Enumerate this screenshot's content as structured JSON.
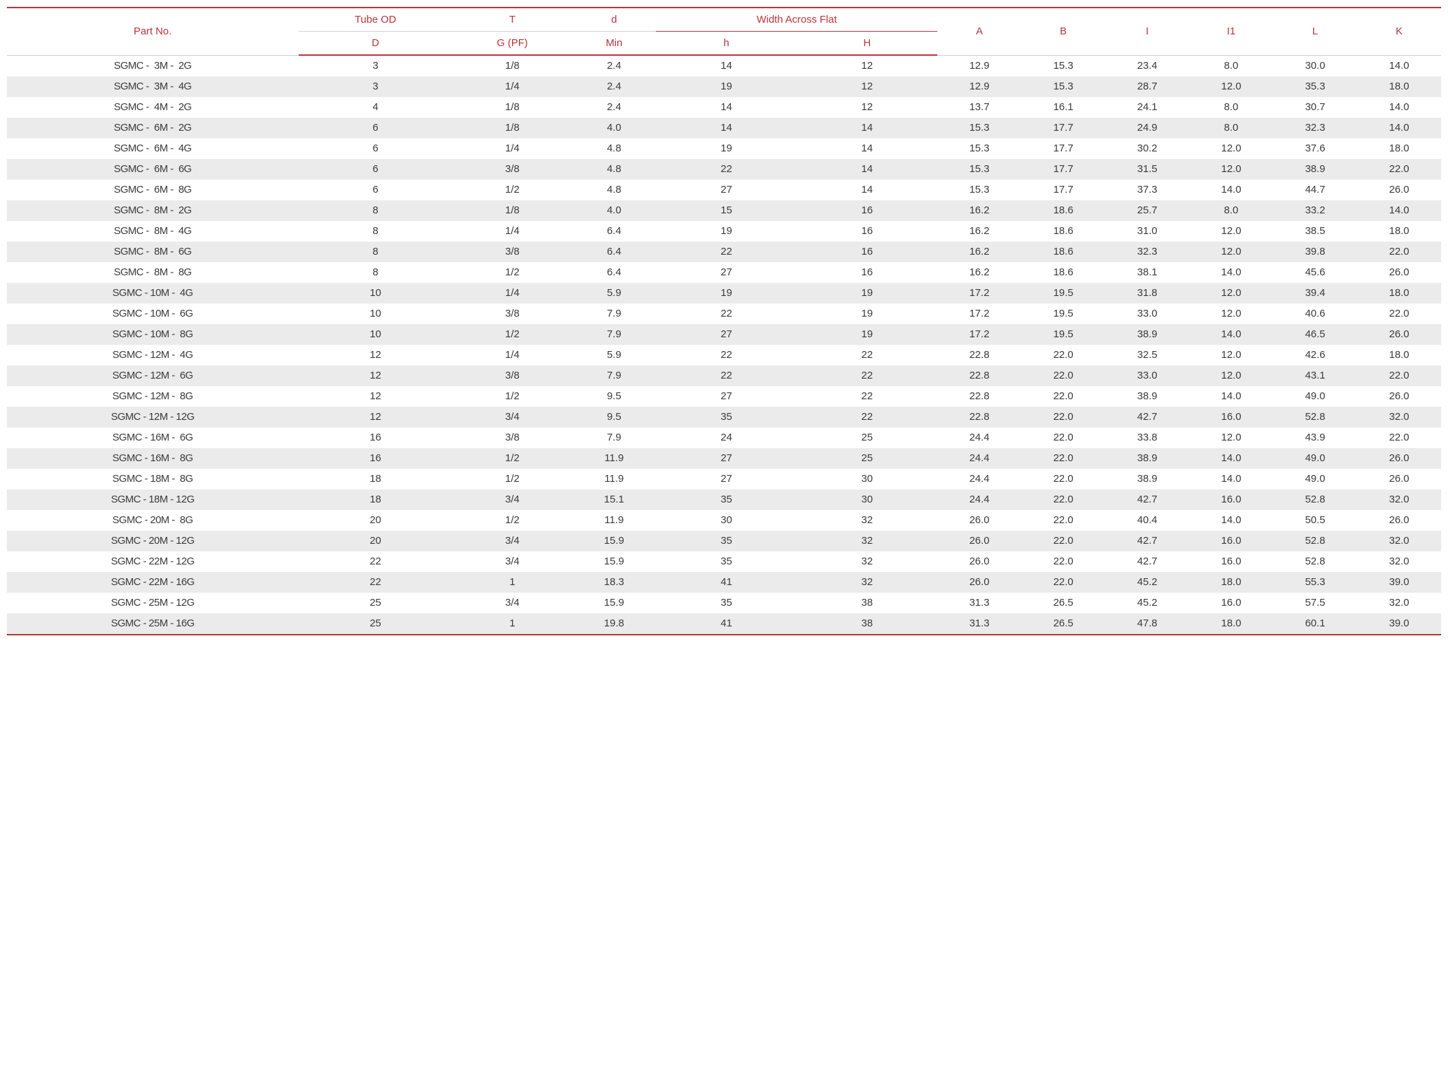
{
  "table": {
    "header_color": "#b8333b",
    "border_color": "#b8333b",
    "row_even_bg": "#ebebeb",
    "row_odd_bg": "#ffffff",
    "text_color": "#3a3a3a",
    "columns": {
      "part_no": "Part No.",
      "tube_od_top": "Tube OD",
      "tube_od_bottom": "D",
      "t_top": "T",
      "t_bottom": "G (PF)",
      "d_top": "d",
      "d_bottom": "Min",
      "width_group": "Width Across Flat",
      "h_lower": "h",
      "h_upper": "H",
      "a": "A",
      "b": "B",
      "i": "I",
      "i1": "I1",
      "l": "L",
      "k": "K"
    },
    "rows": [
      {
        "part": "SGMC -  3M -  2G",
        "d": "3",
        "t": "1/8",
        "dmin": "2.4",
        "h": "14",
        "H": "12",
        "a": "12.9",
        "b": "15.3",
        "i": "23.4",
        "i1": "8.0",
        "l": "30.0",
        "k": "14.0"
      },
      {
        "part": "SGMC -  3M -  4G",
        "d": "3",
        "t": "1/4",
        "dmin": "2.4",
        "h": "19",
        "H": "12",
        "a": "12.9",
        "b": "15.3",
        "i": "28.7",
        "i1": "12.0",
        "l": "35.3",
        "k": "18.0"
      },
      {
        "part": "SGMC -  4M -  2G",
        "d": "4",
        "t": "1/8",
        "dmin": "2.4",
        "h": "14",
        "H": "12",
        "a": "13.7",
        "b": "16.1",
        "i": "24.1",
        "i1": "8.0",
        "l": "30.7",
        "k": "14.0"
      },
      {
        "part": "SGMC -  6M -  2G",
        "d": "6",
        "t": "1/8",
        "dmin": "4.0",
        "h": "14",
        "H": "14",
        "a": "15.3",
        "b": "17.7",
        "i": "24.9",
        "i1": "8.0",
        "l": "32.3",
        "k": "14.0"
      },
      {
        "part": "SGMC -  6M -  4G",
        "d": "6",
        "t": "1/4",
        "dmin": "4.8",
        "h": "19",
        "H": "14",
        "a": "15.3",
        "b": "17.7",
        "i": "30.2",
        "i1": "12.0",
        "l": "37.6",
        "k": "18.0"
      },
      {
        "part": "SGMC -  6M -  6G",
        "d": "6",
        "t": "3/8",
        "dmin": "4.8",
        "h": "22",
        "H": "14",
        "a": "15.3",
        "b": "17.7",
        "i": "31.5",
        "i1": "12.0",
        "l": "38.9",
        "k": "22.0"
      },
      {
        "part": "SGMC -  6M -  8G",
        "d": "6",
        "t": "1/2",
        "dmin": "4.8",
        "h": "27",
        "H": "14",
        "a": "15.3",
        "b": "17.7",
        "i": "37.3",
        "i1": "14.0",
        "l": "44.7",
        "k": "26.0"
      },
      {
        "part": "SGMC -  8M -  2G",
        "d": "8",
        "t": "1/8",
        "dmin": "4.0",
        "h": "15",
        "H": "16",
        "a": "16.2",
        "b": "18.6",
        "i": "25.7",
        "i1": "8.0",
        "l": "33.2",
        "k": "14.0"
      },
      {
        "part": "SGMC -  8M -  4G",
        "d": "8",
        "t": "1/4",
        "dmin": "6.4",
        "h": "19",
        "H": "16",
        "a": "16.2",
        "b": "18.6",
        "i": "31.0",
        "i1": "12.0",
        "l": "38.5",
        "k": "18.0"
      },
      {
        "part": "SGMC -  8M -  6G",
        "d": "8",
        "t": "3/8",
        "dmin": "6.4",
        "h": "22",
        "H": "16",
        "a": "16.2",
        "b": "18.6",
        "i": "32.3",
        "i1": "12.0",
        "l": "39.8",
        "k": "22.0"
      },
      {
        "part": "SGMC -  8M -  8G",
        "d": "8",
        "t": "1/2",
        "dmin": "6.4",
        "h": "27",
        "H": "16",
        "a": "16.2",
        "b": "18.6",
        "i": "38.1",
        "i1": "14.0",
        "l": "45.6",
        "k": "26.0"
      },
      {
        "part": "SGMC - 10M -  4G",
        "d": "10",
        "t": "1/4",
        "dmin": "5.9",
        "h": "19",
        "H": "19",
        "a": "17.2",
        "b": "19.5",
        "i": "31.8",
        "i1": "12.0",
        "l": "39.4",
        "k": "18.0"
      },
      {
        "part": "SGMC - 10M -  6G",
        "d": "10",
        "t": "3/8",
        "dmin": "7.9",
        "h": "22",
        "H": "19",
        "a": "17.2",
        "b": "19.5",
        "i": "33.0",
        "i1": "12.0",
        "l": "40.6",
        "k": "22.0"
      },
      {
        "part": "SGMC - 10M -  8G",
        "d": "10",
        "t": "1/2",
        "dmin": "7.9",
        "h": "27",
        "H": "19",
        "a": "17.2",
        "b": "19.5",
        "i": "38.9",
        "i1": "14.0",
        "l": "46.5",
        "k": "26.0"
      },
      {
        "part": "SGMC - 12M -  4G",
        "d": "12",
        "t": "1/4",
        "dmin": "5.9",
        "h": "22",
        "H": "22",
        "a": "22.8",
        "b": "22.0",
        "i": "32.5",
        "i1": "12.0",
        "l": "42.6",
        "k": "18.0"
      },
      {
        "part": "SGMC - 12M -  6G",
        "d": "12",
        "t": "3/8",
        "dmin": "7.9",
        "h": "22",
        "H": "22",
        "a": "22.8",
        "b": "22.0",
        "i": "33.0",
        "i1": "12.0",
        "l": "43.1",
        "k": "22.0"
      },
      {
        "part": "SGMC - 12M -  8G",
        "d": "12",
        "t": "1/2",
        "dmin": "9.5",
        "h": "27",
        "H": "22",
        "a": "22.8",
        "b": "22.0",
        "i": "38.9",
        "i1": "14.0",
        "l": "49.0",
        "k": "26.0"
      },
      {
        "part": "SGMC - 12M - 12G",
        "d": "12",
        "t": "3/4",
        "dmin": "9.5",
        "h": "35",
        "H": "22",
        "a": "22.8",
        "b": "22.0",
        "i": "42.7",
        "i1": "16.0",
        "l": "52.8",
        "k": "32.0"
      },
      {
        "part": "SGMC - 16M -  6G",
        "d": "16",
        "t": "3/8",
        "dmin": "7.9",
        "h": "24",
        "H": "25",
        "a": "24.4",
        "b": "22.0",
        "i": "33.8",
        "i1": "12.0",
        "l": "43.9",
        "k": "22.0"
      },
      {
        "part": "SGMC - 16M -  8G",
        "d": "16",
        "t": "1/2",
        "dmin": "11.9",
        "h": "27",
        "H": "25",
        "a": "24.4",
        "b": "22.0",
        "i": "38.9",
        "i1": "14.0",
        "l": "49.0",
        "k": "26.0"
      },
      {
        "part": "SGMC - 18M -  8G",
        "d": "18",
        "t": "1/2",
        "dmin": "11.9",
        "h": "27",
        "H": "30",
        "a": "24.4",
        "b": "22.0",
        "i": "38.9",
        "i1": "14.0",
        "l": "49.0",
        "k": "26.0"
      },
      {
        "part": "SGMC - 18M - 12G",
        "d": "18",
        "t": "3/4",
        "dmin": "15.1",
        "h": "35",
        "H": "30",
        "a": "24.4",
        "b": "22.0",
        "i": "42.7",
        "i1": "16.0",
        "l": "52.8",
        "k": "32.0"
      },
      {
        "part": "SGMC - 20M -  8G",
        "d": "20",
        "t": "1/2",
        "dmin": "11.9",
        "h": "30",
        "H": "32",
        "a": "26.0",
        "b": "22.0",
        "i": "40.4",
        "i1": "14.0",
        "l": "50.5",
        "k": "26.0"
      },
      {
        "part": "SGMC - 20M - 12G",
        "d": "20",
        "t": "3/4",
        "dmin": "15.9",
        "h": "35",
        "H": "32",
        "a": "26.0",
        "b": "22.0",
        "i": "42.7",
        "i1": "16.0",
        "l": "52.8",
        "k": "32.0"
      },
      {
        "part": "SGMC - 22M - 12G",
        "d": "22",
        "t": "3/4",
        "dmin": "15.9",
        "h": "35",
        "H": "32",
        "a": "26.0",
        "b": "22.0",
        "i": "42.7",
        "i1": "16.0",
        "l": "52.8",
        "k": "32.0"
      },
      {
        "part": "SGMC - 22M - 16G",
        "d": "22",
        "t": "1",
        "dmin": "18.3",
        "h": "41",
        "H": "32",
        "a": "26.0",
        "b": "22.0",
        "i": "45.2",
        "i1": "18.0",
        "l": "55.3",
        "k": "39.0"
      },
      {
        "part": "SGMC - 25M - 12G",
        "d": "25",
        "t": "3/4",
        "dmin": "15.9",
        "h": "35",
        "H": "38",
        "a": "31.3",
        "b": "26.5",
        "i": "45.2",
        "i1": "16.0",
        "l": "57.5",
        "k": "32.0"
      },
      {
        "part": "SGMC - 25M - 16G",
        "d": "25",
        "t": "1",
        "dmin": "19.8",
        "h": "41",
        "H": "38",
        "a": "31.3",
        "b": "26.5",
        "i": "47.8",
        "i1": "18.0",
        "l": "60.1",
        "k": "39.0"
      }
    ]
  }
}
